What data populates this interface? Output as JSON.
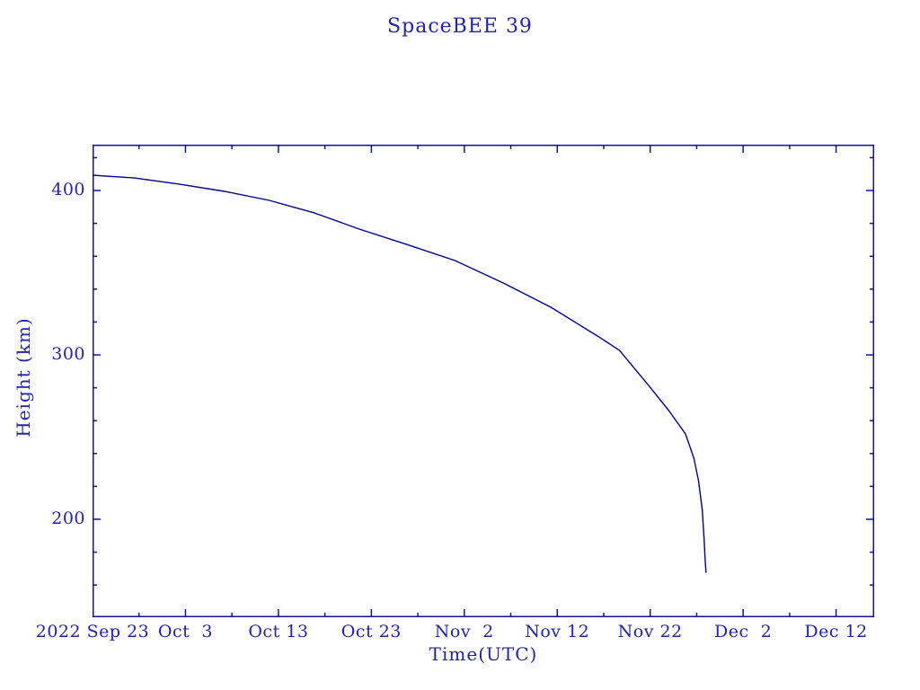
{
  "chart_data": {
    "type": "line",
    "title": "SpaceBEE 39",
    "xlabel": "Time(UTC)",
    "ylabel": "Height (km)",
    "x_unit": "days since 2022 Sep 23",
    "xlim": [
      0,
      84.1
    ],
    "ylim": [
      140.4,
      427.9
    ],
    "grid": false,
    "legend": "none",
    "line_color": "#00008b",
    "text_color": "#2323a8",
    "axis_color": "#12129b",
    "x_major_ticks": [
      {
        "day": 0,
        "label": "2022 Sep 23"
      },
      {
        "day": 10,
        "label": "Oct  3"
      },
      {
        "day": 20,
        "label": "Oct 13"
      },
      {
        "day": 30,
        "label": "Oct 23"
      },
      {
        "day": 40,
        "label": "Nov  2"
      },
      {
        "day": 50,
        "label": "Nov 12"
      },
      {
        "day": 60,
        "label": "Nov 22"
      },
      {
        "day": 70,
        "label": "Dec  2"
      },
      {
        "day": 80,
        "label": "Dec 12"
      }
    ],
    "x_minor_ticks_days": [
      5,
      15,
      25,
      35,
      45,
      55,
      65,
      75
    ],
    "y_major_ticks": [
      {
        "value": 200,
        "label": "200"
      },
      {
        "value": 300,
        "label": "300"
      },
      {
        "value": 400,
        "label": "400"
      }
    ],
    "y_minor_ticks": [
      160,
      180,
      220,
      240,
      260,
      280,
      320,
      340,
      360,
      380,
      420
    ],
    "series": [
      {
        "name": "height_km",
        "points": [
          [
            0,
            409.3
          ],
          [
            4.5,
            407.6
          ],
          [
            9.4,
            403.8
          ],
          [
            14.2,
            399.5
          ],
          [
            19.0,
            394.0
          ],
          [
            23.9,
            386.3
          ],
          [
            28.7,
            376.5
          ],
          [
            33.8,
            367.2
          ],
          [
            39.0,
            357.4
          ],
          [
            44.2,
            343.7
          ],
          [
            49.3,
            329.0
          ],
          [
            54.5,
            310.9
          ],
          [
            56.7,
            302.7
          ],
          [
            59.9,
            280.9
          ],
          [
            62.0,
            266.1
          ],
          [
            63.8,
            251.9
          ],
          [
            64.7,
            237.2
          ],
          [
            65.2,
            223.5
          ],
          [
            65.6,
            206.0
          ],
          [
            65.8,
            188.0
          ],
          [
            65.9,
            177.0
          ],
          [
            66.0,
            167.7
          ]
        ]
      }
    ],
    "decay_end": {
      "date_label": "Nov 28",
      "final_height_km": 167.7
    }
  }
}
